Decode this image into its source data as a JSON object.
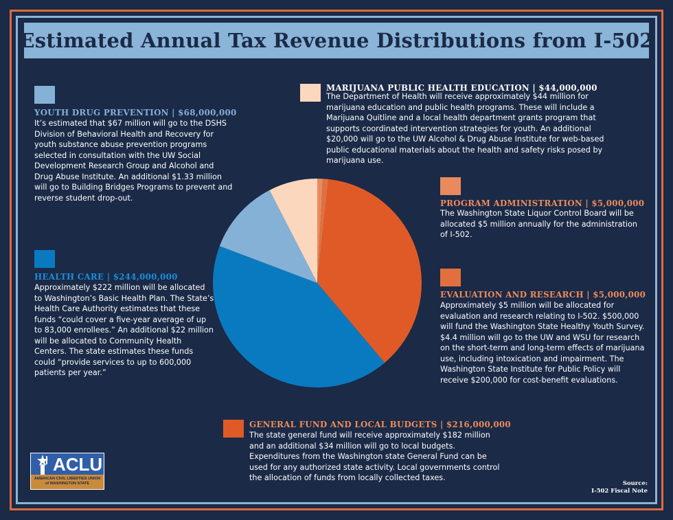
{
  "title": "Estimated Annual Tax Revenue Distributions from I-502",
  "colors": {
    "background": "#1b2a47",
    "youth": "#85b1d6",
    "health_care": "#0a7ac0",
    "public_health": "#fbd7bd",
    "program_admin": "#e88a5e",
    "evaluation": "#e2703e",
    "general_fund": "#e05a28",
    "heading_youth": "#85b1d6",
    "heading_health": "#1a8fd6",
    "heading_orange": "#ef8c5a",
    "heading_public": "#ffffff"
  },
  "sections": {
    "youth": {
      "heading": "YOUTH DRUG PREVENTION | $68,000,000",
      "body": "It’s estimated that $67 million will go to the DSHS Division of Behavioral Health and Recovery for youth substance abuse prevention programs selected in consultation with the UW Social Development Research Group and Alcohol and Drug Abuse Institute. An additional $1.33 million will go to Building Bridges Programs to prevent and reverse student drop-out."
    },
    "health_care": {
      "heading": "HEALTH CARE | $244,000,000",
      "body": "Approximately $222 million will be allocated to Washington’s Basic Health Plan. The State’s Health Care Authority estimates that these funds “could cover a five-year average of up to 83,000 enrollees.” An additional $22 million will be allocated to Community Health Centers. The state estimates these funds could “provide services to up to 600,000 patients per year.”"
    },
    "public_health": {
      "heading": "MARIJUANA PUBLIC HEALTH EDUCATION | $44,000,000",
      "body": "The Department of Health will receive approximately $44 million for marijuana education and public health programs. These will include a Marijuana Quitline and a local health department grants program that supports coordinated intervention strategies for youth. An additional $20,000 will go to the UW Alcohol & Drug Abuse Institute for web-based public educational materials about the health and safety risks posed by marijuana use."
    },
    "program_admin": {
      "heading": "PROGRAM ADMINISTRATION | $5,000,000",
      "body": "The Washington State Liquor Control Board will be allocated $5 million annually for the administration of I-502."
    },
    "evaluation": {
      "heading": "EVALUATION AND RESEARCH | $5,000,000",
      "body": "Approximately $5 million will be allocated for evaluation and research relating to I-502. $500,000 will fund the Washington State Healthy Youth Survey. $4.4 million will go to the UW and WSU for research on the short-term and long-term effects of marijuana use, including intoxication and impairment. The Washington State Institute for Public Policy will receive $200,000 for cost-benefit evaluations."
    },
    "general_fund": {
      "heading": "GENERAL FUND AND LOCAL BUDGETS | $216,000,000",
      "body": "The state general fund will receive approximately $182 million and an additional $34 million will go to local budgets. Expenditures from the Washington state General Fund can be used for any authorized state activity. Local governments control the allocation of funds from locally collected taxes."
    }
  },
  "logo": {
    "word": "ACLU",
    "line1": "AMERICAN CIVIL LIBERTIES UNION",
    "line2": "of WASHINGTON STATE"
  },
  "source": {
    "label": "Source:",
    "value": "I-502 Fiscal Note"
  },
  "chart_data": {
    "type": "pie",
    "title": "Estimated Annual Tax Revenue Distributions from I-502",
    "units": "USD",
    "start": "clockwise from 12 o'clock",
    "slices": [
      {
        "label": "Program Administration",
        "value": 5000000,
        "color_key": "program_admin"
      },
      {
        "label": "Evaluation and Research",
        "value": 5000000,
        "color_key": "evaluation"
      },
      {
        "label": "General Fund and Local Budgets",
        "value": 216000000,
        "color_key": "general_fund"
      },
      {
        "label": "Health Care",
        "value": 244000000,
        "color_key": "health_care"
      },
      {
        "label": "Youth Drug Prevention",
        "value": 68000000,
        "color_key": "youth"
      },
      {
        "label": "Marijuana Public Health Education",
        "value": 44000000,
        "color_key": "public_health"
      }
    ]
  }
}
